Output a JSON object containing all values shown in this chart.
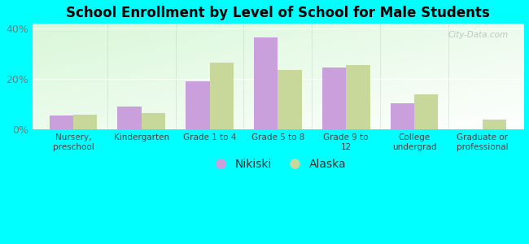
{
  "title": "School Enrollment by Level of School for Male Students",
  "categories": [
    "Nursery,\npreschool",
    "Kindergarten",
    "Grade 1 to 4",
    "Grade 5 to 8",
    "Grade 9 to\n12",
    "College\nundergrad",
    "Graduate or\nprofessional"
  ],
  "nikiski": [
    5.5,
    9.0,
    19.0,
    36.5,
    24.5,
    10.5,
    0.0
  ],
  "alaska": [
    6.0,
    6.5,
    26.5,
    23.5,
    25.5,
    14.0,
    4.0
  ],
  "ylim": [
    0,
    42
  ],
  "yticks": [
    0,
    20,
    40
  ],
  "ytick_labels": [
    "0%",
    "20%",
    "40%"
  ],
  "bar_color_nikiski": "#c9a0dc",
  "bar_color_alaska": "#c8d89a",
  "background_color": "#00ffff",
  "legend_nikiski": "Nikiski",
  "legend_alaska": "Alaska",
  "watermark": "City-Data.com",
  "bar_width": 0.35
}
